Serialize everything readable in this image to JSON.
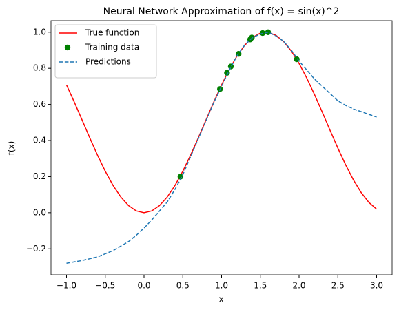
{
  "chart_data": {
    "type": "line",
    "title": "Neural Network Approximation of f(x) = sin(x)^2",
    "xlabel": "x",
    "ylabel": "f(x)",
    "xlim": [
      -1.2,
      3.2
    ],
    "ylim": [
      -0.344,
      1.064
    ],
    "xticks": [
      {
        "value": -1.0,
        "label": "−1.0"
      },
      {
        "value": -0.5,
        "label": "−0.5"
      },
      {
        "value": 0,
        "label": "0.0"
      },
      0.5,
      {
        "value": 1,
        "label": "1.0"
      },
      1.5,
      {
        "value": 2,
        "label": "2.0"
      },
      2.5,
      {
        "value": 3,
        "label": "3.0"
      }
    ],
    "yticks": [
      {
        "value": -0.2,
        "label": "−0.2"
      },
      {
        "value": 0,
        "label": "0.0"
      },
      0.2,
      0.4,
      0.6,
      0.8,
      {
        "value": 1,
        "label": "1.0"
      }
    ],
    "legend": "upper left",
    "series": [
      {
        "name": "True function",
        "color": "#ff0000",
        "style": "solid",
        "x": [
          -1.0,
          -0.9,
          -0.8,
          -0.7,
          -0.6,
          -0.5,
          -0.4,
          -0.3,
          -0.2,
          -0.1,
          0,
          0.1,
          0.2,
          0.3,
          0.4,
          0.5,
          0.6,
          0.7,
          0.8,
          0.9,
          1.0,
          1.1,
          1.2,
          1.3,
          1.4,
          1.5,
          1.6,
          1.7,
          1.8,
          1.9,
          2.0,
          2.1,
          2.2,
          2.3,
          2.4,
          2.5,
          2.6,
          2.7,
          2.8,
          2.9,
          3.0
        ],
        "values": [
          0.7081,
          0.6136,
          0.5146,
          0.415,
          0.3188,
          0.2298,
          0.1516,
          0.0873,
          0.0395,
          0.01,
          0,
          0.01,
          0.0395,
          0.0873,
          0.1516,
          0.2298,
          0.3188,
          0.415,
          0.5146,
          0.6136,
          0.7081,
          0.7943,
          0.8687,
          0.9284,
          0.9711,
          0.995,
          0.9991,
          0.9834,
          0.9484,
          0.8955,
          0.8268,
          0.7451,
          0.6537,
          0.5561,
          0.4563,
          0.3582,
          0.2657,
          0.1827,
          0.1122,
          0.0572,
          0.0199
        ]
      },
      {
        "name": "Training data",
        "color": "#008000",
        "style": "marker",
        "x": [
          0.47,
          0.98,
          1.07,
          1.12,
          1.22,
          1.37,
          1.39,
          1.53,
          1.6,
          1.97
        ],
        "values": [
          0.2,
          0.685,
          0.775,
          0.81,
          0.88,
          0.96,
          0.97,
          0.995,
          1.0,
          0.85
        ]
      },
      {
        "name": "Predictions",
        "color": "#1f77b4",
        "style": "dashed",
        "x": [
          -1.0,
          -0.8,
          -0.6,
          -0.4,
          -0.2,
          -0.1,
          0,
          0.1,
          0.2,
          0.3,
          0.4,
          0.5,
          0.6,
          0.7,
          0.8,
          0.9,
          1.0,
          1.1,
          1.2,
          1.3,
          1.4,
          1.5,
          1.6,
          1.7,
          1.8,
          1.9,
          2.0,
          2.1,
          2.2,
          2.3,
          2.4,
          2.5,
          2.6,
          2.7,
          2.8,
          2.9,
          3.0
        ],
        "values": [
          -0.28,
          -0.265,
          -0.245,
          -0.21,
          -0.16,
          -0.125,
          -0.085,
          -0.04,
          0.01,
          0.06,
          0.13,
          0.21,
          0.31,
          0.41,
          0.51,
          0.61,
          0.7,
          0.79,
          0.87,
          0.93,
          0.97,
          0.99,
          1.0,
          0.98,
          0.95,
          0.9,
          0.84,
          0.79,
          0.74,
          0.7,
          0.66,
          0.62,
          0.595,
          0.575,
          0.56,
          0.545,
          0.53
        ]
      }
    ]
  }
}
